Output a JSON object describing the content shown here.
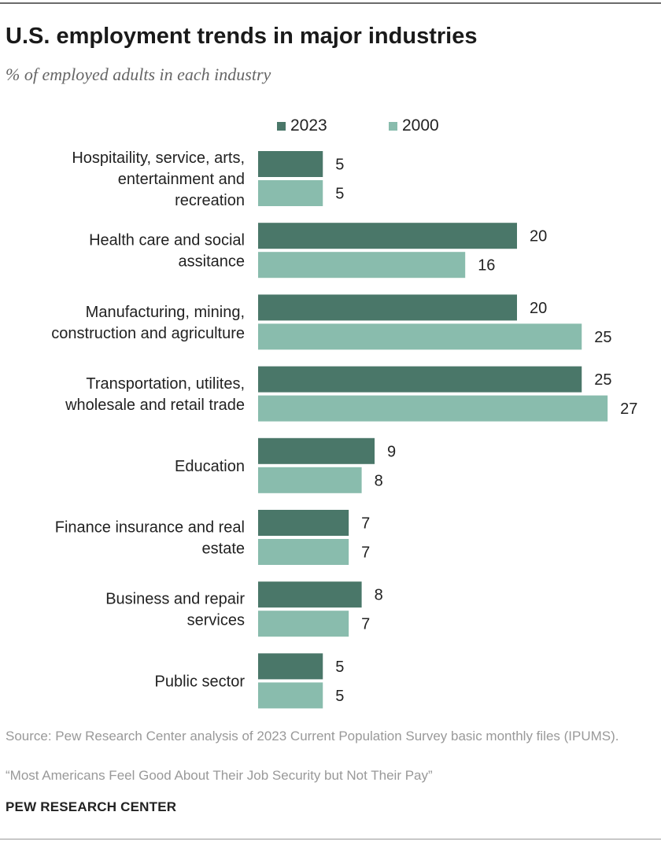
{
  "title": "U.S. employment trends in major industries",
  "subtitle": "% of employed adults in each industry",
  "legend": [
    {
      "label": "2023",
      "color": "#4a7769"
    },
    {
      "label": "2000",
      "color": "#89bcad"
    }
  ],
  "chart_data": {
    "type": "bar",
    "orientation": "horizontal",
    "categories": [
      "Hospitaility, service, arts, entertainment and recreation",
      "Health care and social assitance",
      "Manufacturing, mining, construction and agriculture",
      "Transportation, utilites, wholesale and retail trade",
      "Education",
      "Finance insurance and real estate",
      "Business and repair services",
      "Public sector"
    ],
    "category_lines": [
      [
        "Hospitaility, service, arts,",
        "entertainment and",
        "recreation"
      ],
      [
        "Health care and social",
        "assitance"
      ],
      [
        "Manufacturing, mining,",
        "construction and agriculture"
      ],
      [
        "Transportation, utilites,",
        "wholesale and retail trade"
      ],
      [
        "Education"
      ],
      [
        "Finance insurance and real",
        "estate"
      ],
      [
        "Business and repair",
        "services"
      ],
      [
        "Public sector"
      ]
    ],
    "series": [
      {
        "name": "2023",
        "color": "#4a7769",
        "values": [
          5,
          20,
          20,
          25,
          9,
          7,
          8,
          5
        ]
      },
      {
        "name": "2000",
        "color": "#89bcad",
        "values": [
          5,
          16,
          25,
          27,
          8,
          7,
          7,
          5
        ]
      }
    ],
    "legend_position": "top",
    "grid": false,
    "xlim": [
      0,
      27
    ]
  },
  "footer": {
    "source": "Source: Pew Research Center analysis of 2023 Current Population Survey basic monthly files (IPUMS).",
    "quote": "“Most Americans Feel Good About Their Job Security but Not Their Pay”",
    "brand": "PEW RESEARCH CENTER"
  }
}
